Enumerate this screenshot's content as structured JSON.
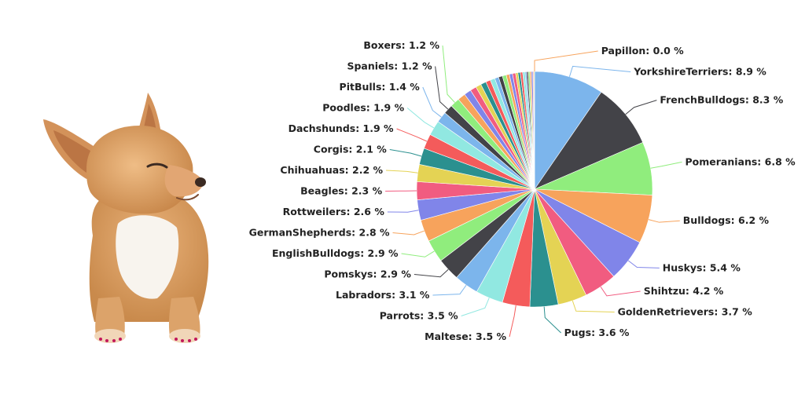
{
  "chart_data": {
    "type": "pie",
    "title": "",
    "categories": [
      "Papillon",
      "YorkshireTerriers",
      "FrenchBulldogs",
      "Pomeranians",
      "Bulldogs",
      "Huskys",
      "Shihtzu",
      "GoldenRetrievers",
      "Pugs",
      "Maltese",
      "Parrots",
      "Labradors",
      "Pomskys",
      "EnglishBulldogs",
      "GermanShepherds",
      "Rottweilers",
      "Beagles",
      "Chihuahuas",
      "Corgis",
      "Dachshunds",
      "Poodles",
      "PitBulls",
      "Spaniels",
      "Boxers"
    ],
    "values": [
      0.0,
      8.9,
      8.3,
      6.8,
      6.2,
      5.4,
      4.2,
      3.7,
      3.6,
      3.5,
      3.5,
      3.1,
      2.9,
      2.9,
      2.8,
      2.6,
      2.3,
      2.2,
      2.1,
      1.9,
      1.9,
      1.4,
      1.2,
      1.2
    ],
    "value_suffix": " %",
    "unlabeled_remainder": [
      1.0,
      0.9,
      0.8,
      0.7,
      0.7,
      0.6,
      0.6,
      0.5,
      0.5,
      0.5,
      0.4,
      0.4,
      0.4,
      0.3,
      0.3,
      0.3,
      0.3,
      0.2,
      0.2,
      0.2,
      0.2,
      0.2,
      0.1,
      0.1
    ],
    "colors": [
      "#f7a35c",
      "#7cb5ec",
      "#434348",
      "#90ed7d",
      "#f7a35c",
      "#8085e9",
      "#f15c80",
      "#e4d354",
      "#2b908f",
      "#f45b5b",
      "#91e8e1",
      "#7cb5ec",
      "#434348",
      "#90ed7d",
      "#f7a35c",
      "#8085e9",
      "#f15c80",
      "#e4d354",
      "#2b908f",
      "#f45b5b",
      "#91e8e1",
      "#7cb5ec",
      "#434348",
      "#90ed7d"
    ],
    "legend": "none"
  },
  "illustration": {
    "subject": "chihuahua-photo"
  }
}
